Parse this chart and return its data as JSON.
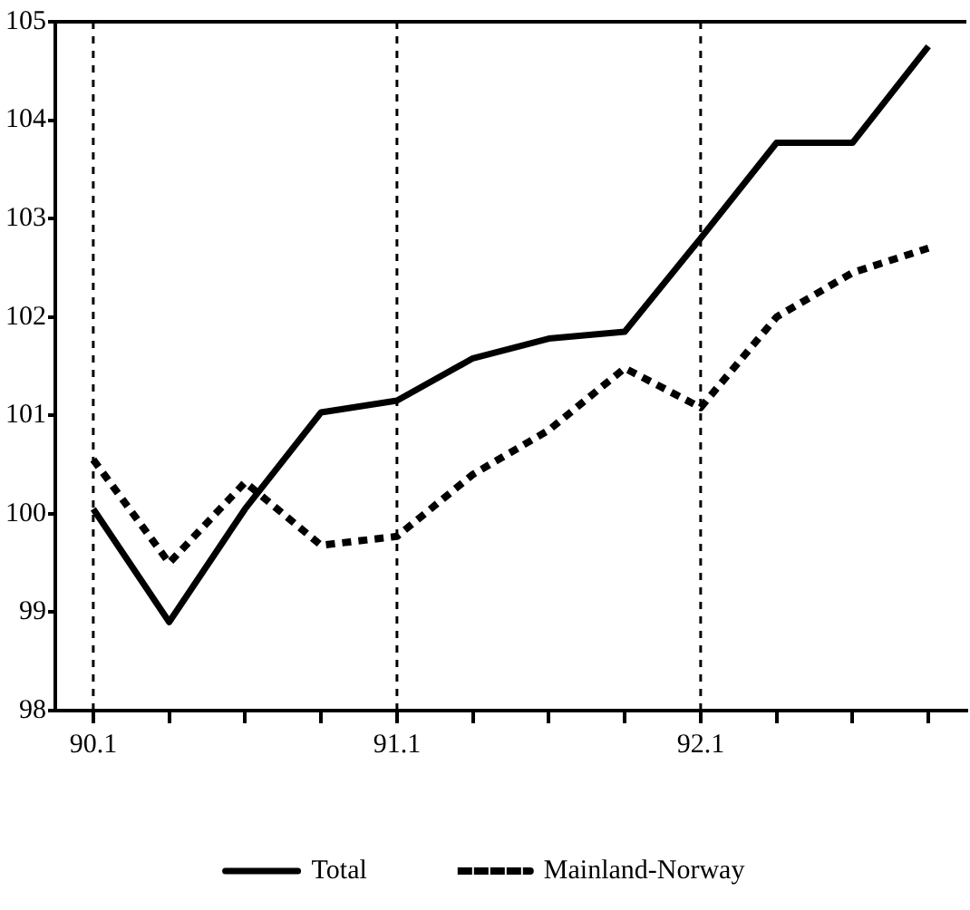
{
  "chart_data": {
    "type": "line",
    "categories": [
      "90.1",
      null,
      null,
      null,
      "91.1",
      null,
      null,
      null,
      "92.1",
      null,
      null,
      null
    ],
    "series": [
      {
        "name": "Total",
        "color": "#000000",
        "line_style": "solid",
        "values": [
          100.05,
          98.9,
          100.05,
          101.03,
          101.15,
          101.58,
          101.78,
          101.85,
          102.8,
          103.77,
          103.77,
          104.75
        ]
      },
      {
        "name": "Mainland-Norway",
        "color": "#000000",
        "line_style": "dotted",
        "values": [
          100.55,
          99.5,
          100.32,
          99.68,
          99.77,
          100.4,
          100.85,
          101.48,
          101.08,
          102.0,
          102.45,
          102.7
        ]
      }
    ],
    "ylim": [
      98,
      105
    ],
    "yticks": [
      98,
      99,
      100,
      101,
      102,
      103,
      104,
      105
    ],
    "ref_lines": [
      {
        "axis": "x",
        "value": "90.1",
        "line_style": "dashed"
      },
      {
        "axis": "x",
        "value": "91.1",
        "line_style": "dashed"
      },
      {
        "axis": "x",
        "value": "92.1",
        "line_style": "dashed"
      }
    ],
    "grid": false,
    "legend": "bottom",
    "marker": "none"
  }
}
